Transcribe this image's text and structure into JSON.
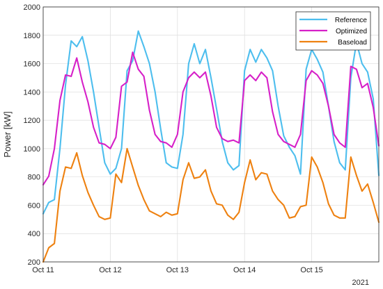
{
  "chart_data": {
    "type": "line",
    "title": "",
    "xlabel": "",
    "ylabel": "Power [kW]",
    "ylim": [
      200,
      2000
    ],
    "yticks": [
      200,
      400,
      600,
      800,
      1000,
      1200,
      1400,
      1600,
      1800,
      2000
    ],
    "x_range": [
      "2021-10-11T00:00",
      "2021-10-16T00:00"
    ],
    "x_ticks": [
      "2021-10-11",
      "2021-10-12",
      "2021-10-13",
      "2021-10-14",
      "2021-10-15"
    ],
    "x_tick_labels": [
      "Oct 11",
      "Oct 12",
      "Oct 13",
      "Oct 14",
      "Oct 15"
    ],
    "x_year_label": "2021",
    "grid": true,
    "legend_position": "top-right",
    "x": [
      "2021-10-11T00:00",
      "2021-10-11T02:00",
      "2021-10-11T04:00",
      "2021-10-11T06:00",
      "2021-10-11T08:00",
      "2021-10-11T10:00",
      "2021-10-11T12:00",
      "2021-10-11T14:00",
      "2021-10-11T16:00",
      "2021-10-11T18:00",
      "2021-10-11T20:00",
      "2021-10-11T22:00",
      "2021-10-12T00:00",
      "2021-10-12T02:00",
      "2021-10-12T04:00",
      "2021-10-12T06:00",
      "2021-10-12T08:00",
      "2021-10-12T10:00",
      "2021-10-12T12:00",
      "2021-10-12T14:00",
      "2021-10-12T16:00",
      "2021-10-12T18:00",
      "2021-10-12T20:00",
      "2021-10-12T22:00",
      "2021-10-13T00:00",
      "2021-10-13T02:00",
      "2021-10-13T04:00",
      "2021-10-13T06:00",
      "2021-10-13T08:00",
      "2021-10-13T10:00",
      "2021-10-13T12:00",
      "2021-10-13T14:00",
      "2021-10-13T16:00",
      "2021-10-13T18:00",
      "2021-10-13T20:00",
      "2021-10-13T22:00",
      "2021-10-14T00:00",
      "2021-10-14T02:00",
      "2021-10-14T04:00",
      "2021-10-14T06:00",
      "2021-10-14T08:00",
      "2021-10-14T10:00",
      "2021-10-14T12:00",
      "2021-10-14T14:00",
      "2021-10-14T16:00",
      "2021-10-14T18:00",
      "2021-10-14T20:00",
      "2021-10-14T22:00",
      "2021-10-15T00:00",
      "2021-10-15T02:00",
      "2021-10-15T04:00",
      "2021-10-15T06:00",
      "2021-10-15T08:00",
      "2021-10-15T10:00",
      "2021-10-15T12:00",
      "2021-10-15T14:00",
      "2021-10-15T16:00",
      "2021-10-15T18:00",
      "2021-10-15T20:00",
      "2021-10-15T22:00",
      "2021-10-16T00:00"
    ],
    "series": [
      {
        "name": "Reference",
        "color": "#4DBEEE",
        "values": [
          540,
          620,
          640,
          1000,
          1450,
          1760,
          1720,
          1790,
          1620,
          1400,
          1150,
          900,
          820,
          860,
          1000,
          1550,
          1620,
          1830,
          1720,
          1600,
          1400,
          1140,
          900,
          870,
          860,
          1100,
          1600,
          1740,
          1600,
          1700,
          1500,
          1280,
          1050,
          900,
          850,
          880,
          1550,
          1700,
          1610,
          1700,
          1640,
          1550,
          1300,
          1090,
          1010,
          950,
          820,
          1560,
          1700,
          1630,
          1540,
          1300,
          1050,
          900,
          850,
          1500,
          1750,
          1600,
          1540,
          1350,
          810
        ]
      },
      {
        "name": "Optimized",
        "color": "#D620C8",
        "values": [
          745,
          805,
          1000,
          1340,
          1520,
          1510,
          1640,
          1470,
          1330,
          1150,
          1040,
          1030,
          1000,
          1080,
          1440,
          1470,
          1680,
          1560,
          1510,
          1270,
          1100,
          1050,
          1040,
          1010,
          1100,
          1400,
          1500,
          1540,
          1500,
          1540,
          1370,
          1150,
          1070,
          1050,
          1060,
          1040,
          1480,
          1520,
          1480,
          1540,
          1500,
          1260,
          1100,
          1050,
          1030,
          1010,
          1100,
          1480,
          1550,
          1520,
          1460,
          1300,
          1100,
          1040,
          1010,
          1580,
          1560,
          1430,
          1460,
          1290,
          1020
        ]
      },
      {
        "name": "Baseload",
        "color": "#EE8110",
        "values": [
          200,
          300,
          330,
          700,
          870,
          860,
          970,
          810,
          690,
          600,
          520,
          500,
          510,
          820,
          760,
          1000,
          870,
          740,
          640,
          560,
          540,
          520,
          550,
          530,
          540,
          780,
          900,
          790,
          800,
          850,
          700,
          610,
          600,
          530,
          500,
          550,
          760,
          920,
          780,
          830,
          820,
          700,
          640,
          600,
          510,
          520,
          590,
          600,
          940,
          870,
          760,
          610,
          530,
          510,
          510,
          940,
          810,
          700,
          750,
          620,
          480
        ]
      }
    ]
  }
}
